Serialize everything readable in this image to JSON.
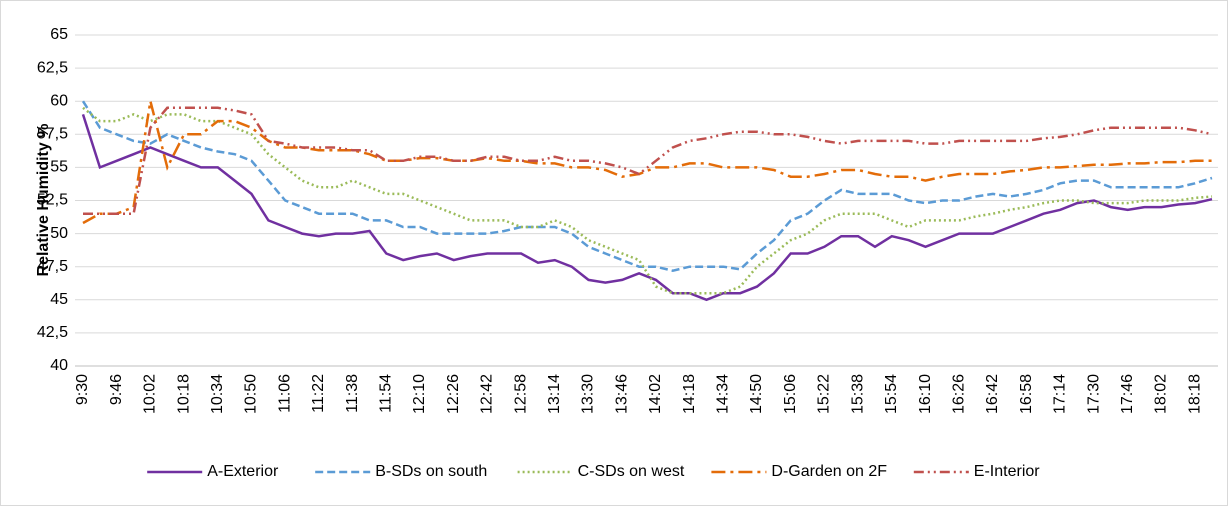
{
  "chart_data": {
    "type": "line",
    "y_label": "Relative Humidity %",
    "categories": [
      "9:30",
      null,
      "9:46",
      null,
      "10:02",
      null,
      "10:18",
      null,
      "10:34",
      null,
      "10:50",
      null,
      "11:06",
      null,
      "11:22",
      null,
      "11:38",
      null,
      "11:54",
      null,
      "12:10",
      null,
      "12:26",
      null,
      "12:42",
      null,
      "12:58",
      null,
      "13:14",
      null,
      "13:30",
      null,
      "13:46",
      null,
      "14:02",
      null,
      "14:18",
      null,
      "14:34",
      null,
      "14:50",
      null,
      "15:06",
      null,
      "15:22",
      null,
      "15:38",
      null,
      "15:54",
      null,
      "16:10",
      null,
      "16:26",
      null,
      "16:42",
      null,
      "16:58",
      null,
      "17:14",
      null,
      "17:30",
      null,
      "17:46",
      null,
      "18:02",
      null,
      "18:18",
      null
    ],
    "ylim": [
      40,
      65
    ],
    "yticks": [
      40,
      {
        "value": 42.5,
        "label": "42,5"
      },
      45,
      {
        "value": 47.5,
        "label": "47,5"
      },
      50,
      {
        "value": 52.5,
        "label": "52,5"
      },
      55,
      {
        "value": 57.5,
        "label": "57,5"
      },
      60,
      {
        "value": 62.5,
        "label": "62,5"
      },
      65
    ],
    "grid": true,
    "legend": "bottom",
    "series": [
      {
        "name": "A-Exterior",
        "color": "#7030a0",
        "dash": "none",
        "values": [
          59,
          55,
          55.5,
          56,
          56.5,
          56,
          55.5,
          55,
          55,
          54,
          53,
          51,
          50.5,
          50,
          49.8,
          50,
          50,
          50.2,
          48.5,
          48,
          48.3,
          48.5,
          48,
          48.3,
          48.5,
          48.5,
          48.5,
          47.8,
          48,
          47.5,
          46.5,
          46.3,
          46.5,
          47,
          46.5,
          45.5,
          45.5,
          45,
          45.5,
          45.5,
          46,
          47,
          48.5,
          48.5,
          49,
          49.8,
          49.8,
          49,
          49.8,
          49.5,
          49,
          49.5,
          50,
          50,
          50,
          50.5,
          51,
          51.5,
          51.8,
          52.3,
          52.5,
          52,
          51.8,
          52,
          52,
          52.2,
          52.3,
          52.6
        ]
      },
      {
        "name": "B-SDs on south",
        "color": "#5b9bd5",
        "dash": "8,4",
        "values": [
          60,
          58,
          57.5,
          57,
          56.8,
          57.5,
          57,
          56.5,
          56.2,
          56,
          55.5,
          54,
          52.5,
          52,
          51.5,
          51.5,
          51.5,
          51,
          51,
          50.5,
          50.5,
          50,
          50,
          50,
          50,
          50.2,
          50.5,
          50.5,
          50.5,
          50,
          49,
          48.5,
          48,
          47.5,
          47.5,
          47.2,
          47.5,
          47.5,
          47.5,
          47.3,
          48.5,
          49.5,
          51,
          51.5,
          52.5,
          53.3,
          53,
          53,
          53,
          52.5,
          52.3,
          52.5,
          52.5,
          52.8,
          53,
          52.8,
          53,
          53.3,
          53.8,
          54,
          54,
          53.5,
          53.5,
          53.5,
          53.5,
          53.5,
          53.8,
          54.2
        ]
      },
      {
        "name": "C-SDs on west",
        "color": "#9bbb59",
        "dash": "2,3",
        "values": [
          59.5,
          58.5,
          58.5,
          59,
          58.5,
          59,
          59,
          58.5,
          58.5,
          58,
          57.5,
          56,
          55,
          54,
          53.5,
          53.5,
          54,
          53.5,
          53,
          53,
          52.5,
          52,
          51.5,
          51,
          51,
          51,
          50.5,
          50.5,
          51,
          50.5,
          49.5,
          49,
          48.5,
          48,
          46,
          45.5,
          45.5,
          45.5,
          45.5,
          46,
          47.5,
          48.5,
          49.5,
          50,
          51,
          51.5,
          51.5,
          51.5,
          51,
          50.5,
          51,
          51,
          51,
          51.3,
          51.5,
          51.8,
          52,
          52.3,
          52.5,
          52.5,
          52.3,
          52.3,
          52.3,
          52.5,
          52.5,
          52.5,
          52.7,
          52.8
        ]
      },
      {
        "name": "D-Garden on 2F",
        "color": "#e36c09",
        "dash": "14,5,3,5",
        "values": [
          50.8,
          51.5,
          51.5,
          52,
          60,
          55,
          57.5,
          57.5,
          58.5,
          58.5,
          58,
          57,
          56.5,
          56.5,
          56.3,
          56.3,
          56.3,
          56,
          55.5,
          55.5,
          55.7,
          55.7,
          55.5,
          55.5,
          55.7,
          55.5,
          55.5,
          55.3,
          55.3,
          55,
          55,
          54.8,
          54.3,
          54.5,
          55,
          55,
          55.3,
          55.3,
          55,
          55,
          55,
          54.8,
          54.3,
          54.3,
          54.5,
          54.8,
          54.8,
          54.5,
          54.3,
          54.3,
          54,
          54.3,
          54.5,
          54.5,
          54.5,
          54.7,
          54.8,
          55,
          55,
          55.1,
          55.2,
          55.2,
          55.3,
          55.3,
          55.4,
          55.4,
          55.5,
          55.5
        ]
      },
      {
        "name": "E-Interior",
        "color": "#c0504d",
        "dash": "10,4,2,4,2,4",
        "values": [
          51.5,
          51.5,
          51.5,
          51.5,
          58,
          59.5,
          59.5,
          59.5,
          59.5,
          59.3,
          59,
          57,
          56.8,
          56.5,
          56.5,
          56.5,
          56.3,
          56.3,
          55.5,
          55.5,
          55.8,
          55.8,
          55.5,
          55.5,
          55.8,
          55.8,
          55.5,
          55.5,
          55.8,
          55.5,
          55.5,
          55.3,
          55,
          54.5,
          55.5,
          56.5,
          57,
          57.2,
          57.5,
          57.7,
          57.7,
          57.5,
          57.5,
          57.3,
          57,
          56.8,
          57,
          57,
          57,
          57,
          56.8,
          56.8,
          57,
          57,
          57,
          57,
          57,
          57.2,
          57.3,
          57.5,
          57.8,
          58,
          58,
          58,
          58,
          58,
          57.8,
          57.5
        ]
      }
    ]
  }
}
